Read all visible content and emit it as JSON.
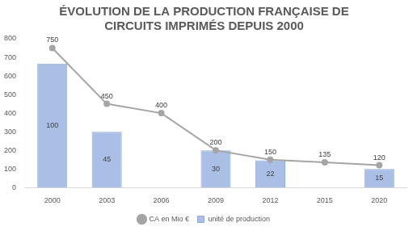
{
  "chart_data": {
    "type": "bar",
    "title": "ÉVOLUTION DE LA PRODUCTION FRANÇAISE DE\nCIRCUITS IMPRIMÉS DEPUIS 2000",
    "categories": [
      "2000",
      "2003",
      "2006",
      "2009",
      "2012",
      "2015",
      "2020"
    ],
    "series": [
      {
        "name": "unité de production",
        "type": "bar",
        "color": "#a9bfe6",
        "axis": "y2",
        "values": [
          100,
          45,
          null,
          30,
          22,
          null,
          15
        ]
      },
      {
        "name": "CA en Mio €",
        "type": "line",
        "color": "#a5a5a5",
        "marker": "circle",
        "line_style": "solid",
        "values": [
          750,
          450,
          400,
          200,
          150,
          135,
          120
        ]
      }
    ],
    "ylim": [
      0,
      800
    ],
    "yticks": [
      0,
      100,
      200,
      300,
      400,
      500,
      600,
      700,
      800
    ],
    "y2lim": [
      0,
      120
    ],
    "grid": false,
    "legend": "bottom",
    "data_labels": true
  }
}
